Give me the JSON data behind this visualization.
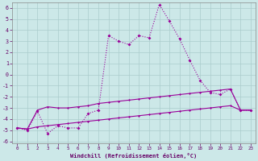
{
  "xlabel": "Windchill (Refroidissement éolien,°C)",
  "bg_color": "#cce8e8",
  "grid_color": "#aacccc",
  "line_color": "#990099",
  "x_ticks": [
    0,
    1,
    2,
    3,
    4,
    5,
    6,
    7,
    8,
    9,
    10,
    11,
    12,
    13,
    14,
    15,
    16,
    17,
    18,
    19,
    20,
    21,
    22,
    23
  ],
  "y_ticks": [
    -6,
    -5,
    -4,
    -3,
    -2,
    -1,
    0,
    1,
    2,
    3,
    4,
    5,
    6
  ],
  "xlim": [
    -0.5,
    23.5
  ],
  "ylim": [
    -6.2,
    6.5
  ],
  "line1_x": [
    0,
    1,
    2,
    3,
    4,
    5,
    6,
    7,
    8,
    9,
    10,
    11,
    12,
    13,
    14,
    15,
    16,
    17,
    18,
    19,
    20,
    21,
    22,
    23
  ],
  "line1_y": [
    -4.8,
    -5.0,
    -3.3,
    -5.3,
    -4.6,
    -4.8,
    -4.8,
    -3.5,
    -3.2,
    3.5,
    3.0,
    2.7,
    3.5,
    3.3,
    6.3,
    4.8,
    3.2,
    1.3,
    -0.5,
    -1.6,
    -1.8,
    -1.3,
    -3.2,
    -3.2
  ],
  "line2_x": [
    0,
    1,
    2,
    3,
    4,
    5,
    6,
    7,
    8,
    9,
    10,
    11,
    12,
    13,
    14,
    15,
    16,
    17,
    18,
    19,
    20,
    21,
    22,
    23
  ],
  "line2_y": [
    -4.8,
    -4.9,
    -3.2,
    -2.9,
    -3.0,
    -3.0,
    -2.9,
    -2.8,
    -2.6,
    -2.5,
    -2.4,
    -2.3,
    -2.2,
    -2.1,
    -2.0,
    -1.9,
    -1.8,
    -1.7,
    -1.6,
    -1.5,
    -1.4,
    -1.3,
    -3.2,
    -3.2
  ],
  "line3_x": [
    0,
    1,
    2,
    3,
    4,
    5,
    6,
    7,
    8,
    9,
    10,
    11,
    12,
    13,
    14,
    15,
    16,
    17,
    18,
    19,
    20,
    21,
    22,
    23
  ],
  "line3_y": [
    -4.8,
    -4.9,
    -4.7,
    -4.6,
    -4.5,
    -4.4,
    -4.3,
    -4.2,
    -4.1,
    -4.0,
    -3.9,
    -3.8,
    -3.7,
    -3.6,
    -3.5,
    -3.4,
    -3.3,
    -3.2,
    -3.1,
    -3.0,
    -2.9,
    -2.8,
    -3.2,
    -3.2
  ]
}
